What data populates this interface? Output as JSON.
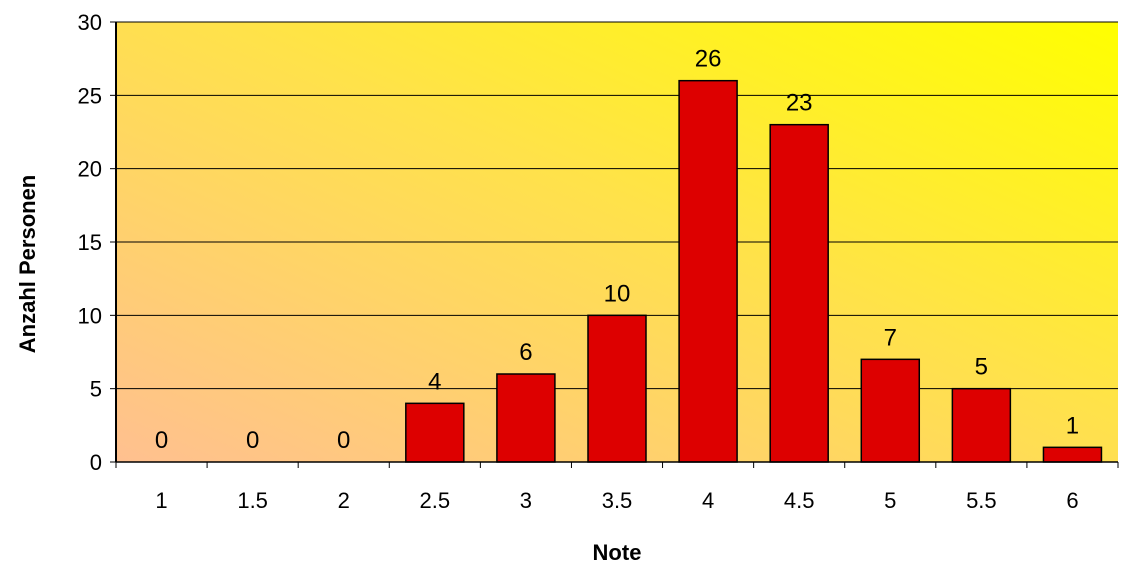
{
  "chart_data": {
    "type": "bar",
    "categories": [
      "1",
      "1.5",
      "2",
      "2.5",
      "3",
      "3.5",
      "4",
      "4.5",
      "5",
      "5.5",
      "6"
    ],
    "values": [
      0,
      0,
      0,
      4,
      6,
      10,
      26,
      23,
      7,
      5,
      1
    ],
    "title": "",
    "xlabel": "Note",
    "ylabel": "Anzahl Personen",
    "ylim": [
      0,
      30
    ],
    "yticks": [
      0,
      5,
      10,
      15,
      20,
      25,
      30
    ],
    "grid": true,
    "legend": "none",
    "colors": {
      "bar_fill": "#dd0000",
      "bar_stroke": "#000000",
      "plot_bg_top_right": "#ffff00",
      "plot_bg_bottom_left": "#ffc090",
      "gridline": "#000000"
    }
  }
}
